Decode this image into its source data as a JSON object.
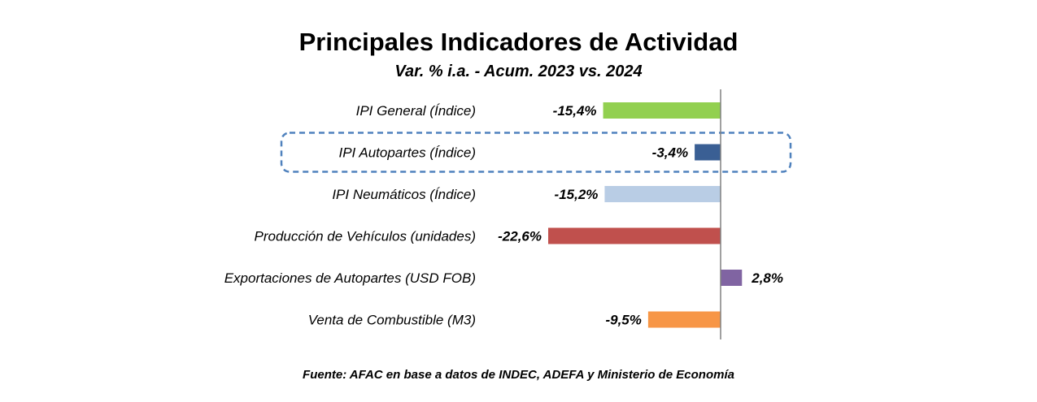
{
  "chart_data": {
    "type": "bar",
    "orientation": "horizontal",
    "title": "Principales Indicadores de Actividad",
    "subtitle": "Var. % i.a. - Acum. 2023 vs. 2024",
    "source": "Fuente: AFAC en base a datos de INDEC, ADEFA y Ministerio de Economía",
    "categories": [
      "IPI General (Índice)",
      "IPI Autopartes (Índice)",
      "IPI Neumáticos (Índice)",
      "Producción de Vehículos (unidades)",
      "Exportaciones de Autopartes (USD FOB)",
      "Venta de Combustible (M3)"
    ],
    "values": [
      -15.4,
      -3.4,
      -15.2,
      -22.6,
      2.8,
      -9.5
    ],
    "value_labels": [
      "-15,4%",
      "-3,4%",
      "-15,2%",
      "-22,6%",
      "2,8%",
      "-9,5%"
    ],
    "colors": [
      "#92d050",
      "#3a5f94",
      "#b9cde5",
      "#c0504d",
      "#8064a2",
      "#f79646"
    ],
    "highlighted_category": "IPI Autopartes (Índice)",
    "highlight_color": "#4f81bd",
    "grid": false,
    "legend": "none"
  }
}
